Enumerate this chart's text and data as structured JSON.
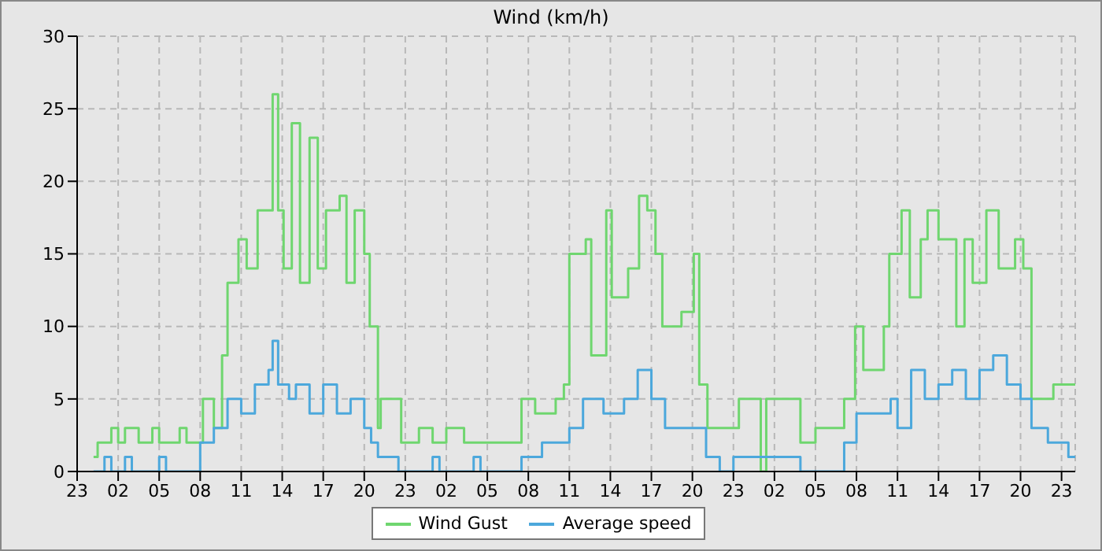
{
  "chart_data": {
    "type": "step",
    "title": "Wind (km/h)",
    "xlim": [
      "--01-01T23:00",
      "--01-05T00:00"
    ],
    "ylim": [
      0,
      30
    ],
    "yticks": [
      0,
      5,
      10,
      15,
      20,
      25,
      30
    ],
    "xticks": [
      {
        "value": "--01-01T23:00",
        "label": "23"
      },
      {
        "value": "--01-02T02:00",
        "label": "02"
      },
      {
        "value": "--01-02T05:00",
        "label": "05"
      },
      {
        "value": "--01-02T08:00",
        "label": "08"
      },
      {
        "value": "--01-02T11:00",
        "label": "11"
      },
      {
        "value": "--01-02T14:00",
        "label": "14"
      },
      {
        "value": "--01-02T17:00",
        "label": "17"
      },
      {
        "value": "--01-02T20:00",
        "label": "20"
      },
      {
        "value": "--01-02T23:00",
        "label": "23"
      },
      {
        "value": "--01-03T02:00",
        "label": "02"
      },
      {
        "value": "--01-03T05:00",
        "label": "05"
      },
      {
        "value": "--01-03T08:00",
        "label": "08"
      },
      {
        "value": "--01-03T11:00",
        "label": "11"
      },
      {
        "value": "--01-03T14:00",
        "label": "14"
      },
      {
        "value": "--01-03T17:00",
        "label": "17"
      },
      {
        "value": "--01-03T20:00",
        "label": "20"
      },
      {
        "value": "--01-03T23:00",
        "label": "23"
      },
      {
        "value": "--01-04T02:00",
        "label": "02"
      },
      {
        "value": "--01-04T05:00",
        "label": "05"
      },
      {
        "value": "--01-04T08:00",
        "label": "08"
      },
      {
        "value": "--01-04T11:00",
        "label": "11"
      },
      {
        "value": "--01-04T14:00",
        "label": "14"
      },
      {
        "value": "--01-04T17:00",
        "label": "17"
      },
      {
        "value": "--01-04T20:00",
        "label": "20"
      },
      {
        "value": "--01-04T23:00",
        "label": "23"
      }
    ],
    "grid": true,
    "legend": "bottom",
    "line_style": "solid",
    "marker": "none",
    "series": [
      {
        "name": "Wind Gust",
        "color": "#6fd66f",
        "x": [
          "--01-02T00:12",
          "--01-02T00:30",
          "--01-02T01:30",
          "--01-02T02:00",
          "--01-02T02:30",
          "--01-02T03:30",
          "--01-02T04:30",
          "--01-02T05:00",
          "--01-02T06:30",
          "--01-02T07:00",
          "--01-02T08:12",
          "--01-02T09:00",
          "--01-02T09:36",
          "--01-02T10:00",
          "--01-02T10:48",
          "--01-02T11:24",
          "--01-02T12:12",
          "--01-02T13:18",
          "--01-02T13:42",
          "--01-02T14:06",
          "--01-02T14:42",
          "--01-02T15:18",
          "--01-02T16:00",
          "--01-02T16:36",
          "--01-02T17:12",
          "--01-02T18:12",
          "--01-02T18:42",
          "--01-02T19:18",
          "--01-02T20:00",
          "--01-02T20:24",
          "--01-02T21:00",
          "--01-02T21:12",
          "--01-02T22:42",
          "--01-03T00:00",
          "--01-03T01:00",
          "--01-03T02:00",
          "--01-03T03:18",
          "--01-03T05:00",
          "--01-03T07:30",
          "--01-03T08:30",
          "--01-03T10:00",
          "--01-03T10:36",
          "--01-03T11:00",
          "--01-03T12:12",
          "--01-03T12:36",
          "--01-03T13:42",
          "--01-03T14:06",
          "--01-03T15:18",
          "--01-03T16:06",
          "--01-03T16:42",
          "--01-03T17:18",
          "--01-03T17:48",
          "--01-03T19:12",
          "--01-03T20:06",
          "--01-03T20:30",
          "--01-03T21:06",
          "--01-03T22:36",
          "--01-03T23:24",
          "--01-04T01:00",
          "--01-04T01:24",
          "--01-04T03:54",
          "--01-04T05:00",
          "--01-04T07:06",
          "--01-04T07:54",
          "--01-04T08:30",
          "--01-04T10:00",
          "--01-04T10:24",
          "--01-04T11:18",
          "--01-04T11:54",
          "--01-04T12:42",
          "--01-04T13:12",
          "--01-04T14:00",
          "--01-04T15:18",
          "--01-04T15:54",
          "--01-04T16:30",
          "--01-04T17:30",
          "--01-04T18:24",
          "--01-04T19:36",
          "--01-04T20:12",
          "--01-04T20:48",
          "--01-04T22:24",
          "--01-05T00:00"
        ],
        "values": [
          1,
          2,
          3,
          2,
          3,
          2,
          3,
          2,
          3,
          2,
          5,
          3,
          8,
          13,
          16,
          14,
          18,
          26,
          18,
          14,
          24,
          13,
          23,
          14,
          18,
          19,
          13,
          18,
          15,
          10,
          3,
          5,
          2,
          3,
          2,
          3,
          2,
          2,
          5,
          4,
          5,
          6,
          15,
          16,
          8,
          18,
          12,
          14,
          19,
          18,
          15,
          10,
          11,
          15,
          6,
          3,
          3,
          5,
          0,
          5,
          2,
          3,
          5,
          10,
          7,
          10,
          15,
          18,
          12,
          16,
          18,
          16,
          10,
          16,
          13,
          18,
          14,
          16,
          14,
          5,
          6,
          6
        ]
      },
      {
        "name": "Average speed",
        "color": "#4ca8dc",
        "x": [
          "--01-02T00:12",
          "--01-02T01:00",
          "--01-02T01:30",
          "--01-02T02:30",
          "--01-02T03:00",
          "--01-02T05:00",
          "--01-02T05:30",
          "--01-02T08:00",
          "--01-02T09:00",
          "--01-02T10:00",
          "--01-02T11:00",
          "--01-02T12:00",
          "--01-02T13:00",
          "--01-02T13:18",
          "--01-02T13:42",
          "--01-02T14:30",
          "--01-02T15:00",
          "--01-02T16:00",
          "--01-02T17:00",
          "--01-02T18:00",
          "--01-02T19:00",
          "--01-02T20:00",
          "--01-02T20:30",
          "--01-02T21:00",
          "--01-02T22:30",
          "--01-03T01:00",
          "--01-03T01:30",
          "--01-03T04:00",
          "--01-03T04:30",
          "--01-03T07:30",
          "--01-03T09:00",
          "--01-03T11:00",
          "--01-03T12:00",
          "--01-03T13:30",
          "--01-03T15:00",
          "--01-03T16:00",
          "--01-03T17:00",
          "--01-03T18:00",
          "--01-03T20:00",
          "--01-03T21:00",
          "--01-03T22:00",
          "--01-03T23:00",
          "--01-04T01:00",
          "--01-04T03:54",
          "--01-04T07:06",
          "--01-04T08:00",
          "--01-04T10:30",
          "--01-04T11:00",
          "--01-04T12:00",
          "--01-04T13:00",
          "--01-04T14:00",
          "--01-04T15:00",
          "--01-04T16:00",
          "--01-04T17:00",
          "--01-04T18:00",
          "--01-04T19:00",
          "--01-04T20:00",
          "--01-04T20:48",
          "--01-04T22:00",
          "--01-04T23:30",
          "--01-05T00:00"
        ],
        "values": [
          0,
          1,
          0,
          1,
          0,
          1,
          0,
          2,
          3,
          5,
          4,
          6,
          7,
          9,
          6,
          5,
          6,
          4,
          6,
          4,
          5,
          3,
          2,
          1,
          0,
          1,
          0,
          1,
          0,
          1,
          2,
          3,
          5,
          4,
          5,
          7,
          5,
          3,
          3,
          1,
          0,
          1,
          1,
          0,
          2,
          4,
          5,
          3,
          7,
          5,
          6,
          7,
          5,
          7,
          8,
          6,
          5,
          3,
          2,
          1,
          1
        ]
      }
    ]
  }
}
